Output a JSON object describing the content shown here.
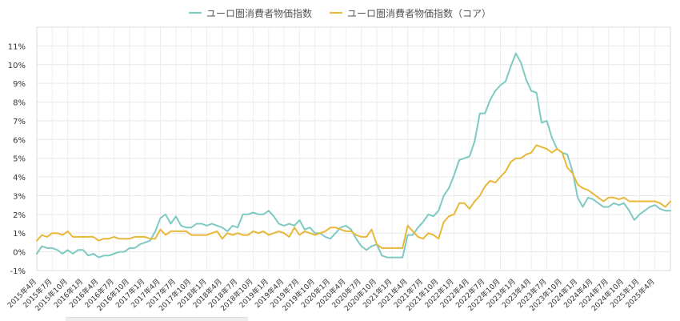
{
  "chart_data": {
    "type": "line",
    "title": "",
    "xlabel": "",
    "ylabel": "",
    "ylim": [
      -1,
      12
    ],
    "grid": true,
    "legend_position": "top-center",
    "y_ticks": [
      -1,
      0,
      1,
      2,
      3,
      4,
      5,
      6,
      7,
      8,
      9,
      10,
      11
    ],
    "y_tick_labels": [
      "-1%",
      "0%",
      "1%",
      "2%",
      "3%",
      "4%",
      "5%",
      "6%",
      "7%",
      "8%",
      "9%",
      "10%",
      "11%"
    ],
    "x_tick_labels": [
      "2015年4月",
      "2015年7月",
      "2015年10月",
      "2016年1月",
      "2016年4月",
      "2016年7月",
      "2016年10月",
      "2017年1月",
      "2017年4月",
      "2017年7月",
      "2017年10月",
      "2018年1月",
      "2018年4月",
      "2018年7月",
      "2018年10月",
      "2019年1月",
      "2019年4月",
      "2019年7月",
      "2019年10月",
      "2020年1月",
      "2020年4月",
      "2020年7月",
      "2020年10月",
      "2021年1月",
      "2021年4月",
      "2021年7月",
      "2021年10月",
      "2022年1月",
      "2022年4月",
      "2022年7月",
      "2022年10月",
      "2023年1月",
      "2023年4月",
      "2023年7月",
      "2023年10月",
      "2024年1月",
      "2024年4月",
      "2024年7月",
      "2024年10月",
      "2025年1月",
      "2025年4月"
    ],
    "series": [
      {
        "name": "ユーロ圏消費者物価指数",
        "color": "#7ecac3",
        "values": [
          -0.1,
          0.3,
          0.2,
          0.2,
          0.1,
          -0.1,
          0.1,
          -0.1,
          0.1,
          0.1,
          -0.2,
          -0.1,
          -0.3,
          -0.2,
          -0.2,
          -0.1,
          0.0,
          0.0,
          0.2,
          0.2,
          0.4,
          0.5,
          0.6,
          1.1,
          1.8,
          2.0,
          1.5,
          1.9,
          1.4,
          1.3,
          1.3,
          1.5,
          1.5,
          1.4,
          1.5,
          1.4,
          1.3,
          1.1,
          1.4,
          1.3,
          2.0,
          2.0,
          2.1,
          2.0,
          2.0,
          2.2,
          1.9,
          1.5,
          1.4,
          1.5,
          1.4,
          1.7,
          1.2,
          1.3,
          1.0,
          1.0,
          0.8,
          0.7,
          1.0,
          1.3,
          1.4,
          1.2,
          0.7,
          0.3,
          0.1,
          0.3,
          0.4,
          -0.2,
          -0.3,
          -0.3,
          -0.3,
          -0.3,
          0.9,
          0.9,
          1.3,
          1.6,
          2.0,
          1.9,
          2.2,
          3.0,
          3.4,
          4.1,
          4.9,
          5.0,
          5.1,
          5.9,
          7.4,
          7.4,
          8.1,
          8.6,
          8.9,
          9.1,
          9.9,
          10.6,
          10.1,
          9.2,
          8.6,
          8.5,
          6.9,
          7.0,
          6.1,
          5.5,
          5.3,
          5.2,
          4.3,
          2.9,
          2.4,
          2.9,
          2.8,
          2.6,
          2.4,
          2.4,
          2.6,
          2.5,
          2.6,
          2.2,
          1.7,
          2.0,
          2.2,
          2.4,
          2.5,
          2.3,
          2.2,
          2.2
        ]
      },
      {
        "name": "ユーロ圏消費者物価指数（コア）",
        "color": "#e8b83a",
        "values": [
          0.6,
          0.9,
          0.8,
          1.0,
          1.0,
          0.9,
          1.1,
          0.8,
          0.8,
          0.8,
          0.8,
          0.8,
          0.6,
          0.7,
          0.7,
          0.8,
          0.7,
          0.7,
          0.7,
          0.8,
          0.8,
          0.8,
          0.7,
          0.7,
          1.2,
          0.9,
          1.1,
          1.1,
          1.1,
          1.1,
          0.9,
          0.9,
          0.9,
          0.9,
          1.0,
          1.1,
          0.7,
          1.0,
          0.9,
          1.0,
          0.9,
          0.9,
          1.1,
          1.0,
          1.1,
          0.9,
          1.0,
          1.1,
          1.0,
          0.8,
          1.3,
          0.9,
          1.1,
          1.0,
          0.9,
          1.0,
          1.1,
          1.3,
          1.3,
          1.2,
          1.1,
          1.1,
          0.9,
          0.8,
          0.8,
          1.2,
          0.4,
          0.2,
          0.2,
          0.2,
          0.2,
          0.2,
          1.4,
          1.1,
          0.8,
          0.7,
          1.0,
          0.9,
          0.7,
          1.6,
          1.9,
          2.0,
          2.6,
          2.6,
          2.3,
          2.7,
          3.0,
          3.5,
          3.8,
          3.7,
          4.0,
          4.3,
          4.8,
          5.0,
          5.0,
          5.2,
          5.3,
          5.7,
          5.6,
          5.5,
          5.3,
          5.5,
          5.3,
          4.5,
          4.2,
          3.6,
          3.4,
          3.3,
          3.1,
          2.9,
          2.7,
          2.9,
          2.9,
          2.8,
          2.9,
          2.7,
          2.7,
          2.7,
          2.7,
          2.7,
          2.7,
          2.6,
          2.4,
          2.7
        ]
      }
    ]
  }
}
